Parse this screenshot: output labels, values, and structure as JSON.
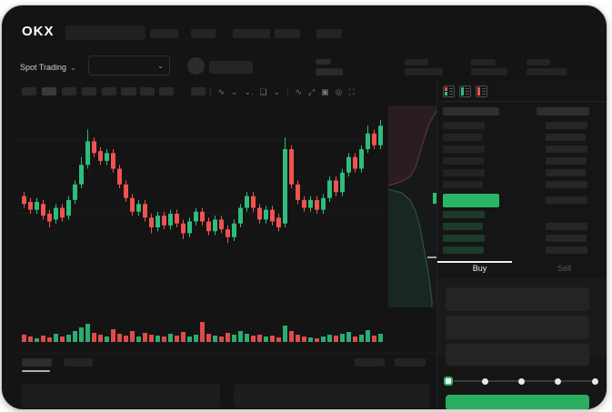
{
  "brand": {
    "logo": "OKX"
  },
  "subheader": {
    "market_selector": "Spot Trading",
    "market_chevron": "⌄",
    "pair_chevron": "⌄"
  },
  "toolbar": {
    "icons": [
      {
        "name": "divider",
        "glyph": "|",
        "sep": true
      },
      {
        "name": "candle-style-icon",
        "glyph": "∿",
        "sep": false
      },
      {
        "name": "chevron-down-icon",
        "glyph": "⌄",
        "sep": false
      },
      {
        "name": "interval-chevron-icon",
        "glyph": "⌄.",
        "sep": false
      },
      {
        "name": "indicator-icon",
        "glyph": "❏",
        "sep": false
      },
      {
        "name": "chevron-down-icon",
        "glyph": "⌄",
        "sep": false
      },
      {
        "name": "divider",
        "glyph": "|",
        "sep": true
      },
      {
        "name": "line-tool-icon",
        "glyph": "∿",
        "sep": false
      },
      {
        "name": "measure-icon",
        "glyph": "⤢",
        "sep": false
      },
      {
        "name": "snapshot-icon",
        "glyph": "▣",
        "sep": false
      },
      {
        "name": "timer-icon",
        "glyph": "◎",
        "sep": false
      },
      {
        "name": "fullscreen-icon",
        "glyph": "⛶",
        "sep": false
      }
    ]
  },
  "chart_data": {
    "type": "candlestick",
    "title": "",
    "xlabel": "",
    "ylabel": "",
    "axis_labels_visible": false,
    "up_color": "#2ebd7d",
    "down_color": "#ef5350",
    "candles": [
      [
        56,
        52,
        58,
        50
      ],
      [
        53,
        49,
        55,
        47
      ],
      [
        49,
        53,
        55,
        47
      ],
      [
        52,
        46,
        54,
        44
      ],
      [
        47,
        43,
        49,
        40
      ],
      [
        44,
        50,
        52,
        42
      ],
      [
        50,
        45,
        52,
        43
      ],
      [
        46,
        54,
        56,
        44
      ],
      [
        54,
        62,
        64,
        52
      ],
      [
        62,
        72,
        76,
        60
      ],
      [
        72,
        84,
        90,
        70
      ],
      [
        84,
        78,
        86,
        76
      ],
      [
        79,
        74,
        81,
        72
      ],
      [
        74,
        78,
        80,
        72
      ],
      [
        78,
        70,
        80,
        68
      ],
      [
        70,
        62,
        72,
        60
      ],
      [
        62,
        55,
        64,
        53
      ],
      [
        55,
        48,
        57,
        46
      ],
      [
        48,
        52,
        54,
        46
      ],
      [
        52,
        45,
        54,
        43
      ],
      [
        45,
        40,
        47,
        37
      ],
      [
        40,
        46,
        48,
        38
      ],
      [
        46,
        41,
        48,
        39
      ],
      [
        41,
        47,
        49,
        39
      ],
      [
        47,
        42,
        49,
        40
      ],
      [
        42,
        37,
        44,
        34
      ],
      [
        37,
        43,
        45,
        35
      ],
      [
        43,
        48,
        50,
        41
      ],
      [
        48,
        43,
        50,
        41
      ],
      [
        43,
        38,
        45,
        36
      ],
      [
        38,
        44,
        46,
        36
      ],
      [
        44,
        39,
        46,
        37
      ],
      [
        39,
        35,
        41,
        32
      ],
      [
        35,
        42,
        44,
        33
      ],
      [
        42,
        50,
        52,
        40
      ],
      [
        50,
        56,
        58,
        48
      ],
      [
        56,
        50,
        58,
        48
      ],
      [
        50,
        44,
        52,
        42
      ],
      [
        44,
        49,
        51,
        42
      ],
      [
        49,
        43,
        51,
        41
      ],
      [
        45,
        40,
        47,
        38
      ],
      [
        42,
        80,
        86,
        40
      ],
      [
        80,
        62,
        82,
        60
      ],
      [
        62,
        54,
        64,
        52
      ],
      [
        54,
        50,
        56,
        48
      ],
      [
        50,
        54,
        56,
        48
      ],
      [
        54,
        49,
        56,
        47
      ],
      [
        49,
        55,
        57,
        47
      ],
      [
        55,
        64,
        66,
        53
      ],
      [
        64,
        58,
        66,
        56
      ],
      [
        58,
        68,
        70,
        56
      ],
      [
        68,
        76,
        78,
        66
      ],
      [
        76,
        70,
        78,
        68
      ],
      [
        70,
        80,
        82,
        68
      ],
      [
        80,
        88,
        92,
        78
      ],
      [
        88,
        82,
        90,
        80
      ],
      [
        82,
        92,
        95,
        80
      ]
    ],
    "volumes": [
      8,
      6,
      4,
      7,
      5,
      9,
      6,
      8,
      12,
      16,
      20,
      10,
      8,
      6,
      14,
      9,
      7,
      12,
      6,
      10,
      8,
      7,
      6,
      9,
      7,
      11,
      6,
      8,
      22,
      9,
      7,
      6,
      10,
      8,
      12,
      9,
      7,
      8,
      6,
      7,
      5,
      18,
      12,
      8,
      6,
      5,
      4,
      6,
      8,
      7,
      9,
      11,
      6,
      8,
      13,
      7,
      9
    ],
    "depth_overlay": {
      "ask_line": [
        [
          466,
          8
        ],
        [
          458,
          22
        ],
        [
          452,
          40
        ],
        [
          447,
          57
        ],
        [
          443,
          70
        ],
        [
          437,
          80
        ],
        [
          427,
          86
        ],
        [
          413,
          90
        ]
      ],
      "bid_line": [
        [
          413,
          94
        ],
        [
          428,
          98
        ],
        [
          437,
          106
        ],
        [
          443,
          118
        ],
        [
          448,
          136
        ],
        [
          452,
          158
        ],
        [
          456,
          180
        ],
        [
          459,
          200
        ],
        [
          461,
          216
        ],
        [
          461,
          224
        ]
      ],
      "ask_fill": "rgba(170,70,70,0.13)",
      "bid_fill": "rgba(45,150,95,0.12)",
      "last_price_marker_color": "#2cc06e"
    }
  },
  "order_book": {
    "view_icons": [
      "split-view-icon",
      "bids-view-icon",
      "asks-view-icon"
    ],
    "asks": [
      {
        "l": 46,
        "r": 46
      },
      {
        "l": 44,
        "r": 44
      },
      {
        "l": 46,
        "r": 46
      },
      {
        "l": 45,
        "r": 45
      },
      {
        "l": 46,
        "r": 44
      },
      {
        "l": 44,
        "r": 46
      }
    ],
    "last_price_bar": {
      "width": 62,
      "color": "#2ab564",
      "side_bar": 46
    },
    "bids": [
      {
        "l": 46,
        "r": 0
      },
      {
        "l": 44,
        "r": 46
      },
      {
        "l": 46,
        "r": 45
      },
      {
        "l": 45,
        "r": 46
      }
    ],
    "bid_bar_color": "#1c3b29",
    "ask_bar_color": "#232323",
    "amount_bar_color": "#262626"
  },
  "trade_panel": {
    "buy_tab": "Buy",
    "sell_tab": "Sell",
    "input_placeholders": 3,
    "slider_stops": 5,
    "buy_button_color": "#2aad5f"
  },
  "colors": {
    "window_bg": "#141414",
    "accent_green": "#2ebd7d",
    "accent_red": "#ef5350",
    "button_green": "#2aad5f"
  }
}
